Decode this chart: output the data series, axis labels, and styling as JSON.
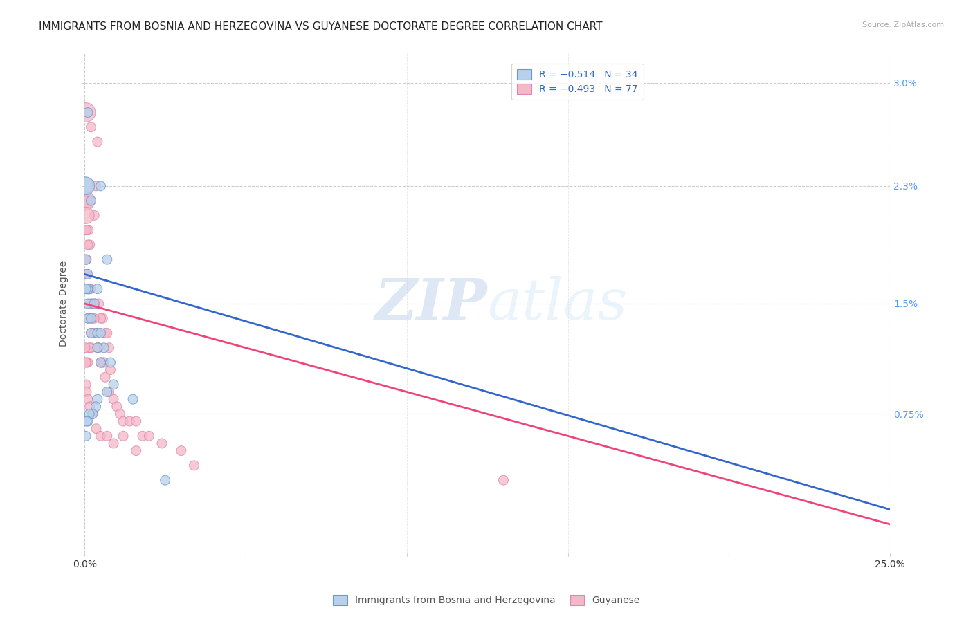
{
  "title": "IMMIGRANTS FROM BOSNIA AND HERZEGOVINA VS GUYANESE DOCTORATE DEGREE CORRELATION CHART",
  "source": "Source: ZipAtlas.com",
  "ylabel": "Doctorate Degree",
  "ylabel_right_ticks": [
    "3.0%",
    "2.3%",
    "1.5%",
    "0.75%"
  ],
  "ylabel_right_vals": [
    0.03,
    0.023,
    0.015,
    0.0075
  ],
  "xlim": [
    0.0,
    0.25
  ],
  "ylim": [
    -0.002,
    0.032
  ],
  "legend_blue_label": "R = −0.514   N = 34",
  "legend_pink_label": "R = −0.493   N = 77",
  "blue_color": "#b8d0ea",
  "pink_color": "#f5b8c8",
  "blue_edge_color": "#6699cc",
  "pink_edge_color": "#dd88aa",
  "blue_line_color": "#3366cc",
  "pink_line_color": "#ee4477",
  "watermark_zip": "ZIP",
  "watermark_atlas": "atlas",
  "grid_color": "#cccccc",
  "bg_color": "#ffffff",
  "title_fontsize": 11,
  "right_axis_color": "#5599ff",
  "blue_trend_x": [
    0.0,
    0.25
  ],
  "blue_trend_y": [
    0.017,
    0.001
  ],
  "pink_trend_x": [
    0.0,
    0.25
  ],
  "pink_trend_y": [
    0.015,
    0.0
  ],
  "blue_scatter_x": [
    0.005,
    0.007,
    0.001,
    0.002,
    0.004,
    0.001,
    0.001,
    0.001,
    0.001,
    0.0005,
    0.001,
    0.002,
    0.002,
    0.003,
    0.004,
    0.005,
    0.006,
    0.008,
    0.009,
    0.004,
    0.005,
    0.007,
    0.004,
    0.0035,
    0.0025,
    0.0015,
    0.001,
    0.0006,
    0.0004,
    0.0002,
    0.0003,
    0.015,
    0.025,
    0.0004
  ],
  "blue_scatter_y": [
    0.023,
    0.018,
    0.028,
    0.022,
    0.016,
    0.016,
    0.016,
    0.017,
    0.015,
    0.018,
    0.014,
    0.014,
    0.013,
    0.015,
    0.013,
    0.013,
    0.012,
    0.011,
    0.0095,
    0.012,
    0.011,
    0.009,
    0.0085,
    0.008,
    0.0075,
    0.0075,
    0.007,
    0.007,
    0.006,
    0.023,
    0.023,
    0.0085,
    0.003,
    0.016
  ],
  "blue_scatter_sizes": [
    100,
    100,
    100,
    100,
    100,
    100,
    100,
    100,
    100,
    100,
    100,
    100,
    100,
    100,
    100,
    100,
    100,
    100,
    100,
    100,
    100,
    100,
    100,
    100,
    100,
    100,
    100,
    100,
    100,
    300,
    350,
    100,
    100,
    100
  ],
  "pink_scatter_x": [
    0.002,
    0.004,
    0.0035,
    0.003,
    0.001,
    0.0012,
    0.0016,
    0.0006,
    0.0004,
    0.0002,
    0.0008,
    0.0014,
    0.0018,
    0.0024,
    0.0032,
    0.0044,
    0.0056,
    0.0064,
    0.007,
    0.0076,
    0.005,
    0.0036,
    0.0028,
    0.002,
    0.0014,
    0.001,
    0.0006,
    0.0004,
    0.0002,
    0.0001,
    0.0002,
    0.0004,
    0.0006,
    0.001,
    0.0014,
    0.0018,
    0.0024,
    0.003,
    0.0036,
    0.0044,
    0.005,
    0.0056,
    0.0064,
    0.0076,
    0.009,
    0.01,
    0.011,
    0.012,
    0.014,
    0.016,
    0.018,
    0.02,
    0.024,
    0.03,
    0.034,
    0.0004,
    0.0006,
    0.001,
    0.0016,
    0.0024,
    0.0036,
    0.005,
    0.007,
    0.009,
    0.012,
    0.016,
    0.0002,
    0.0006,
    0.0012,
    0.002,
    0.003,
    0.004,
    0.005,
    0.006,
    0.008,
    0.13,
    0.0004
  ],
  "pink_scatter_y": [
    0.027,
    0.026,
    0.023,
    0.021,
    0.022,
    0.02,
    0.019,
    0.018,
    0.018,
    0.02,
    0.017,
    0.016,
    0.016,
    0.015,
    0.015,
    0.015,
    0.014,
    0.013,
    0.013,
    0.012,
    0.014,
    0.013,
    0.013,
    0.012,
    0.012,
    0.011,
    0.011,
    0.011,
    0.012,
    0.022,
    0.022,
    0.021,
    0.02,
    0.019,
    0.016,
    0.015,
    0.014,
    0.014,
    0.013,
    0.012,
    0.011,
    0.011,
    0.01,
    0.009,
    0.0085,
    0.008,
    0.0075,
    0.007,
    0.007,
    0.007,
    0.006,
    0.006,
    0.0055,
    0.005,
    0.004,
    0.0095,
    0.009,
    0.0085,
    0.008,
    0.0075,
    0.0065,
    0.006,
    0.006,
    0.0055,
    0.006,
    0.005,
    0.017,
    0.016,
    0.014,
    0.013,
    0.013,
    0.012,
    0.011,
    0.011,
    0.0105,
    0.003,
    0.028
  ],
  "pink_scatter_sizes": [
    100,
    100,
    100,
    100,
    100,
    100,
    100,
    100,
    100,
    100,
    100,
    100,
    100,
    100,
    100,
    100,
    100,
    100,
    100,
    100,
    100,
    100,
    100,
    100,
    100,
    100,
    100,
    100,
    100,
    300,
    400,
    300,
    100,
    100,
    100,
    100,
    100,
    100,
    100,
    100,
    100,
    100,
    100,
    100,
    100,
    100,
    100,
    100,
    100,
    100,
    100,
    100,
    100,
    100,
    100,
    100,
    100,
    100,
    100,
    100,
    100,
    100,
    100,
    100,
    100,
    100,
    100,
    100,
    100,
    100,
    100,
    100,
    100,
    100,
    100,
    100,
    400
  ]
}
